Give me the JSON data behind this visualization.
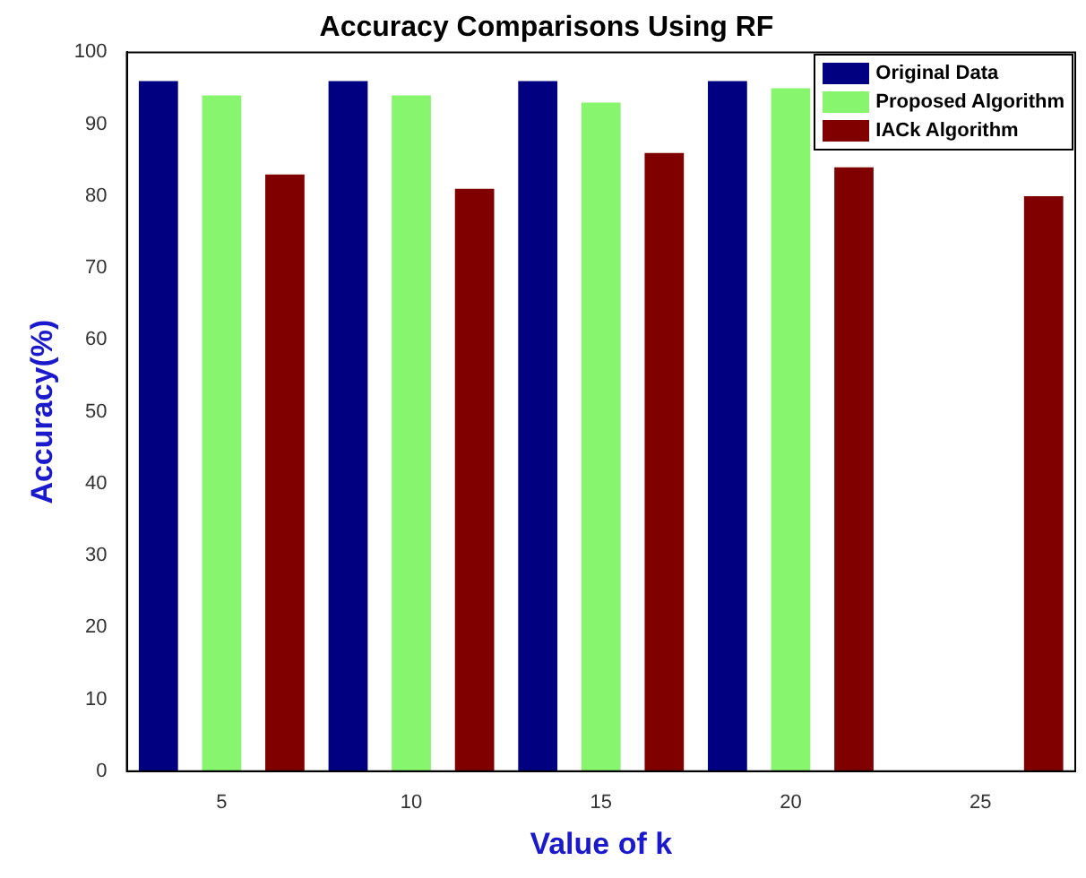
{
  "chart_data": {
    "type": "bar",
    "title": "Accuracy Comparisons Using RF",
    "xlabel": "Value of k",
    "ylabel": "Accuracy(%)",
    "categories": [
      "5",
      "10",
      "15",
      "20",
      "25"
    ],
    "series": [
      {
        "name": "Original Data",
        "color": "#000080",
        "values": [
          96,
          96,
          96,
          96,
          null
        ]
      },
      {
        "name": "Proposed Algorithm",
        "color": "#88f56e",
        "values": [
          94,
          94,
          93,
          95,
          null
        ]
      },
      {
        "name": "IACk Algorithm",
        "color": "#800000",
        "values": [
          83,
          81,
          86,
          84,
          80
        ]
      }
    ],
    "ylim": [
      0,
      100
    ],
    "yticks": [
      0,
      10,
      20,
      30,
      40,
      50,
      60,
      70,
      80,
      90,
      100
    ],
    "grid": false,
    "legend": "top right"
  }
}
